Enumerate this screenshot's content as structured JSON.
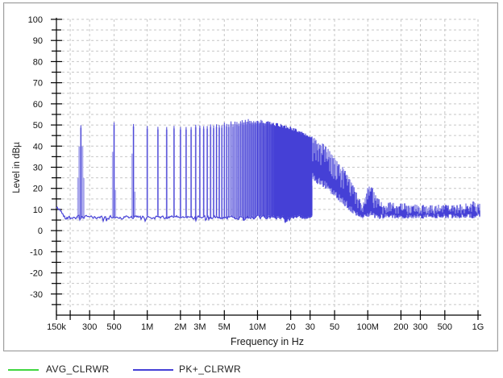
{
  "chart_data": {
    "type": "line",
    "title": "",
    "xlabel": "Frequency in Hz",
    "ylabel": "Level in dBµ",
    "x_scale": "log",
    "x_range_hz": [
      150000,
      1000000000
    ],
    "y_range_db": [
      -40,
      100
    ],
    "y_axis": {
      "label_min": -30,
      "label_max": 100,
      "label_step": 10,
      "grid_step_db": 5
    },
    "x_ticks": [
      {
        "hz": 150000,
        "label": "150k"
      },
      {
        "hz": 300000,
        "label": "300"
      },
      {
        "hz": 500000,
        "label": "500"
      },
      {
        "hz": 1000000,
        "label": "1M"
      },
      {
        "hz": 2000000,
        "label": "2M"
      },
      {
        "hz": 3000000,
        "label": "3M"
      },
      {
        "hz": 5000000,
        "label": "5M"
      },
      {
        "hz": 10000000,
        "label": "10M"
      },
      {
        "hz": 20000000,
        "label": "20"
      },
      {
        "hz": 30000000,
        "label": "30"
      },
      {
        "hz": 50000000,
        "label": "50"
      },
      {
        "hz": 100000000,
        "label": "100M"
      },
      {
        "hz": 200000000,
        "label": "200"
      },
      {
        "hz": 300000000,
        "label": "300"
      },
      {
        "hz": 500000000,
        "label": "500"
      },
      {
        "hz": 1000000000,
        "label": "1G"
      }
    ],
    "x_grid_hz": [
      200000,
      300000,
      500000,
      1000000,
      2000000,
      3000000,
      5000000,
      10000000,
      20000000,
      30000000,
      50000000,
      100000000,
      200000000,
      300000000,
      500000000,
      1000000000
    ],
    "grid_color": "#c6c6c6",
    "axis_color": "#000000",
    "legend_position": "bottom-left",
    "series": [
      {
        "name": "AVG_CLRWR",
        "color": "#3fd63f",
        "trace_visible": false
      },
      {
        "name": "PK+_CLRWR",
        "color": "#4540d6",
        "color_light": "#a9a7ec",
        "trace_visible": true
      }
    ],
    "pk_trace": {
      "noise_floor_db": 6.3,
      "left_edge_start_db": 10.5,
      "comb": {
        "fundamental_hz": 250000,
        "last_harmonic_hz": 31000000,
        "peak_profile_db": [
          [
            250000,
            50
          ],
          [
            500000,
            52
          ],
          [
            750000,
            51
          ],
          [
            1000000,
            50.2
          ],
          [
            1500000,
            49.3
          ],
          [
            2000000,
            49
          ],
          [
            3000000,
            49.4
          ],
          [
            4000000,
            50
          ],
          [
            5000000,
            50.6
          ],
          [
            6500000,
            51.3
          ],
          [
            8000000,
            52
          ],
          [
            10000000,
            52
          ],
          [
            12000000,
            51.2
          ],
          [
            15000000,
            50.2
          ],
          [
            18000000,
            49.2
          ],
          [
            20000000,
            48.4
          ],
          [
            24000000,
            46.8
          ],
          [
            27000000,
            45.4
          ],
          [
            30000000,
            44.2
          ],
          [
            31000000,
            43.6
          ]
        ]
      },
      "broadband": {
        "start_hz": 31000000,
        "top_envelope_db": [
          [
            31000000,
            43.5
          ],
          [
            35000000,
            41.5
          ],
          [
            40000000,
            39.5
          ],
          [
            45000000,
            37
          ],
          [
            50000000,
            34
          ],
          [
            55000000,
            31
          ],
          [
            60000000,
            28
          ],
          [
            65000000,
            25
          ],
          [
            70000000,
            22
          ],
          [
            75000000,
            19
          ],
          [
            80000000,
            16
          ],
          [
            85000000,
            13
          ],
          [
            90000000,
            11.5
          ],
          [
            95000000,
            16
          ],
          [
            100000000,
            19.5
          ],
          [
            107000000,
            20
          ],
          [
            115000000,
            16.5
          ],
          [
            125000000,
            13.5
          ],
          [
            140000000,
            12
          ],
          [
            170000000,
            11.5
          ],
          [
            250000000,
            11
          ],
          [
            350000000,
            10.5
          ],
          [
            500000000,
            11
          ],
          [
            700000000,
            10.8
          ],
          [
            850000000,
            11.5
          ],
          [
            950000000,
            13
          ],
          [
            1000000000,
            12.5
          ]
        ],
        "bottom_envelope_db": [
          [
            31000000,
            25
          ],
          [
            35000000,
            23
          ],
          [
            40000000,
            21
          ],
          [
            45000000,
            19
          ],
          [
            50000000,
            17
          ],
          [
            55000000,
            15
          ],
          [
            60000000,
            13
          ],
          [
            65000000,
            11
          ],
          [
            70000000,
            9.5
          ],
          [
            75000000,
            8.5
          ],
          [
            80000000,
            7.5
          ],
          [
            85000000,
            6.5
          ],
          [
            90000000,
            6.3
          ],
          [
            95000000,
            7
          ],
          [
            100000000,
            7.5
          ],
          [
            110000000,
            7
          ],
          [
            125000000,
            6.5
          ],
          [
            1000000000,
            6.8
          ]
        ]
      }
    }
  }
}
